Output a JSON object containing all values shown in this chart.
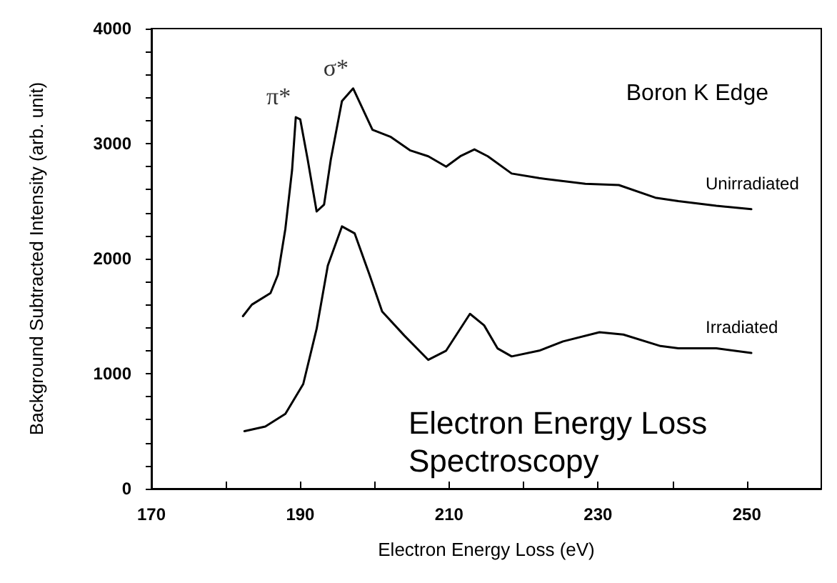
{
  "chart_data": {
    "type": "line",
    "xlabel": "Electron Energy Loss (eV)",
    "ylabel": "Background Subtracted Intensity (arb. unit)",
    "xlim": [
      170,
      260
    ],
    "xticks": [
      170,
      {
        "value": 180,
        "label": null
      },
      190,
      {
        "value": 200,
        "label": null
      },
      210,
      {
        "value": 220,
        "label": null
      },
      230,
      {
        "value": 240,
        "label": null
      },
      250
    ],
    "ylim": [
      0,
      4000
    ],
    "yticks": [
      0,
      {
        "value": 200,
        "label": null
      },
      {
        "value": 400,
        "label": null
      },
      {
        "value": 600,
        "label": null
      },
      {
        "value": 800,
        "label": null
      },
      1000,
      {
        "value": 1200,
        "label": null
      },
      {
        "value": 1400,
        "label": null
      },
      {
        "value": 1600,
        "label": null
      },
      {
        "value": 1800,
        "label": null
      },
      2000,
      {
        "value": 2200,
        "label": null
      },
      {
        "value": 2400,
        "label": null
      },
      {
        "value": 2600,
        "label": null
      },
      {
        "value": 2800,
        "label": null
      },
      3000,
      {
        "value": 3200,
        "label": null
      },
      {
        "value": 3400,
        "label": null
      },
      {
        "value": 3600,
        "label": null
      },
      {
        "value": 3800,
        "label": null
      },
      4000
    ],
    "grid": false,
    "legend": false,
    "marker": "none",
    "line_style": "solid",
    "series": [
      {
        "name": "Unirradiated",
        "color": "#000000",
        "x": [
          182.3,
          183.5,
          186,
          187,
          188,
          188.9,
          189.4,
          190,
          191,
          192.2,
          193.2,
          194.1,
          195.6,
          197.1,
          198.4,
          199.7,
          202.1,
          204.8,
          207.2,
          209.6,
          211.5,
          213.4,
          215.2,
          218.4,
          222.1,
          228.3,
          232.8,
          237.7,
          240.8,
          245.9,
          250.6
        ],
        "values": [
          1500,
          1600,
          1700,
          1860,
          2260,
          2770,
          3230,
          3210,
          2860,
          2410,
          2470,
          2860,
          3370,
          3480,
          3300,
          3120,
          3060,
          2940,
          2890,
          2800,
          2890,
          2950,
          2890,
          2740,
          2700,
          2650,
          2640,
          2530,
          2500,
          2460,
          2430
        ]
      },
      {
        "name": "Irradiated",
        "color": "#000000",
        "x": [
          182.5,
          185.3,
          188,
          190.4,
          192.2,
          193.7,
          195.6,
          197.3,
          199.3,
          201,
          204,
          207.2,
          209.6,
          212.8,
          214.7,
          216.5,
          218.4,
          222.1,
          225.3,
          230.2,
          233.4,
          238.4,
          240.8,
          245.9,
          250.6
        ],
        "values": [
          500,
          540,
          650,
          910,
          1390,
          1940,
          2280,
          2220,
          1860,
          1540,
          1330,
          1120,
          1200,
          1520,
          1420,
          1220,
          1150,
          1200,
          1280,
          1360,
          1340,
          1240,
          1220,
          1220,
          1180
        ]
      }
    ],
    "annotations": [
      {
        "text": "π*",
        "x": 189.4,
        "y": 3230
      },
      {
        "text": "σ*",
        "x": 197.1,
        "y": 3480
      },
      "Boron K Edge",
      "Electron Energy Loss\nSpectroscopy"
    ]
  }
}
